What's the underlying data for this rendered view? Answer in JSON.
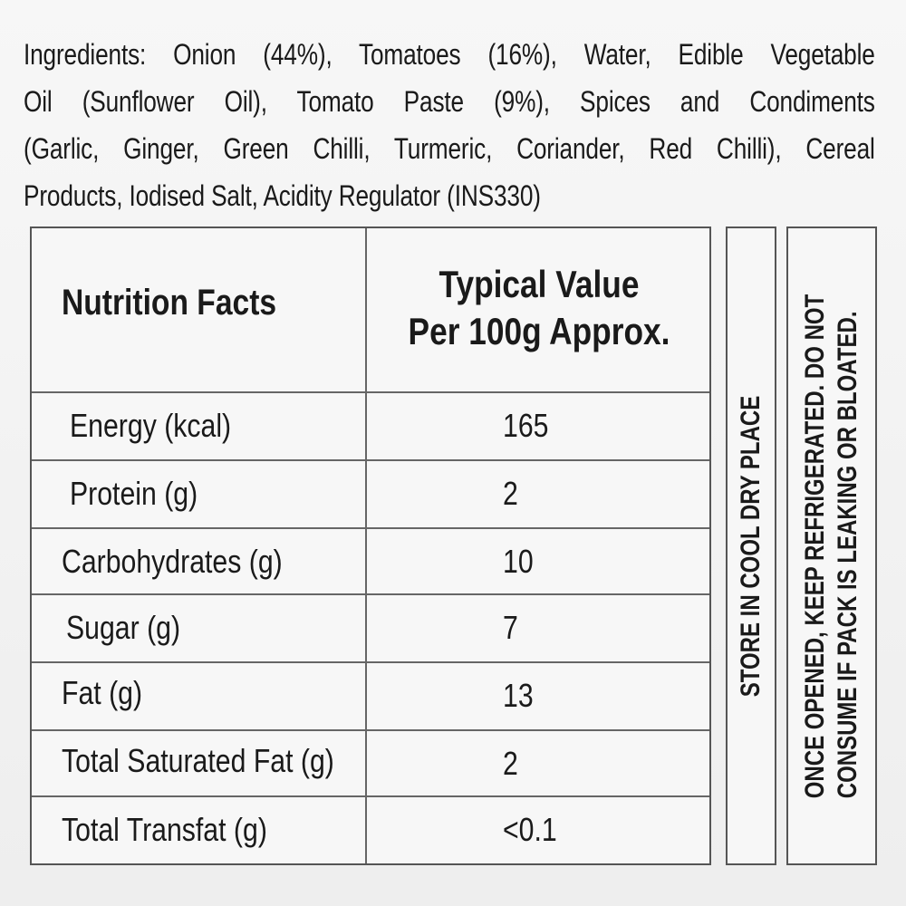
{
  "ingredients": {
    "lines": [
      "Ingredients: Onion (44%), Tomatoes (16%), Water, Edible Vegetable",
      "Oil (Sunflower Oil), Tomato Paste (9%), Spices and Condiments",
      "(Garlic, Ginger, Green Chilli, Turmeric, Coriander, Red Chilli), Cereal",
      "Products, Iodised Salt, Acidity Regulator (INS330)"
    ]
  },
  "nutrition": {
    "header_label": "Nutrition Facts",
    "header_value_line1": "Typical Value",
    "header_value_line2": "Per 100g Approx.",
    "rows": [
      {
        "label": "Energy (kcal)",
        "value": "165"
      },
      {
        "label": "Protein (g)",
        "value": "2"
      },
      {
        "label": "Carbohydrates (g)",
        "value": "10"
      },
      {
        "label": "Sugar (g)",
        "value": "7"
      },
      {
        "label": "Fat (g)",
        "value": "13"
      },
      {
        "label": "Total Saturated Fat (g)",
        "value": "2"
      },
      {
        "label": "Total Transfat (g)",
        "value": "<0.1"
      }
    ]
  },
  "storage": {
    "store_text": "STORE IN COOL DRY PLACE",
    "once_opened_line1": "ONCE OPENED, KEEP REFRIGERATED. DO NOT",
    "once_opened_line2": "CONSUME IF PACK IS LEAKING OR BLOATED."
  }
}
